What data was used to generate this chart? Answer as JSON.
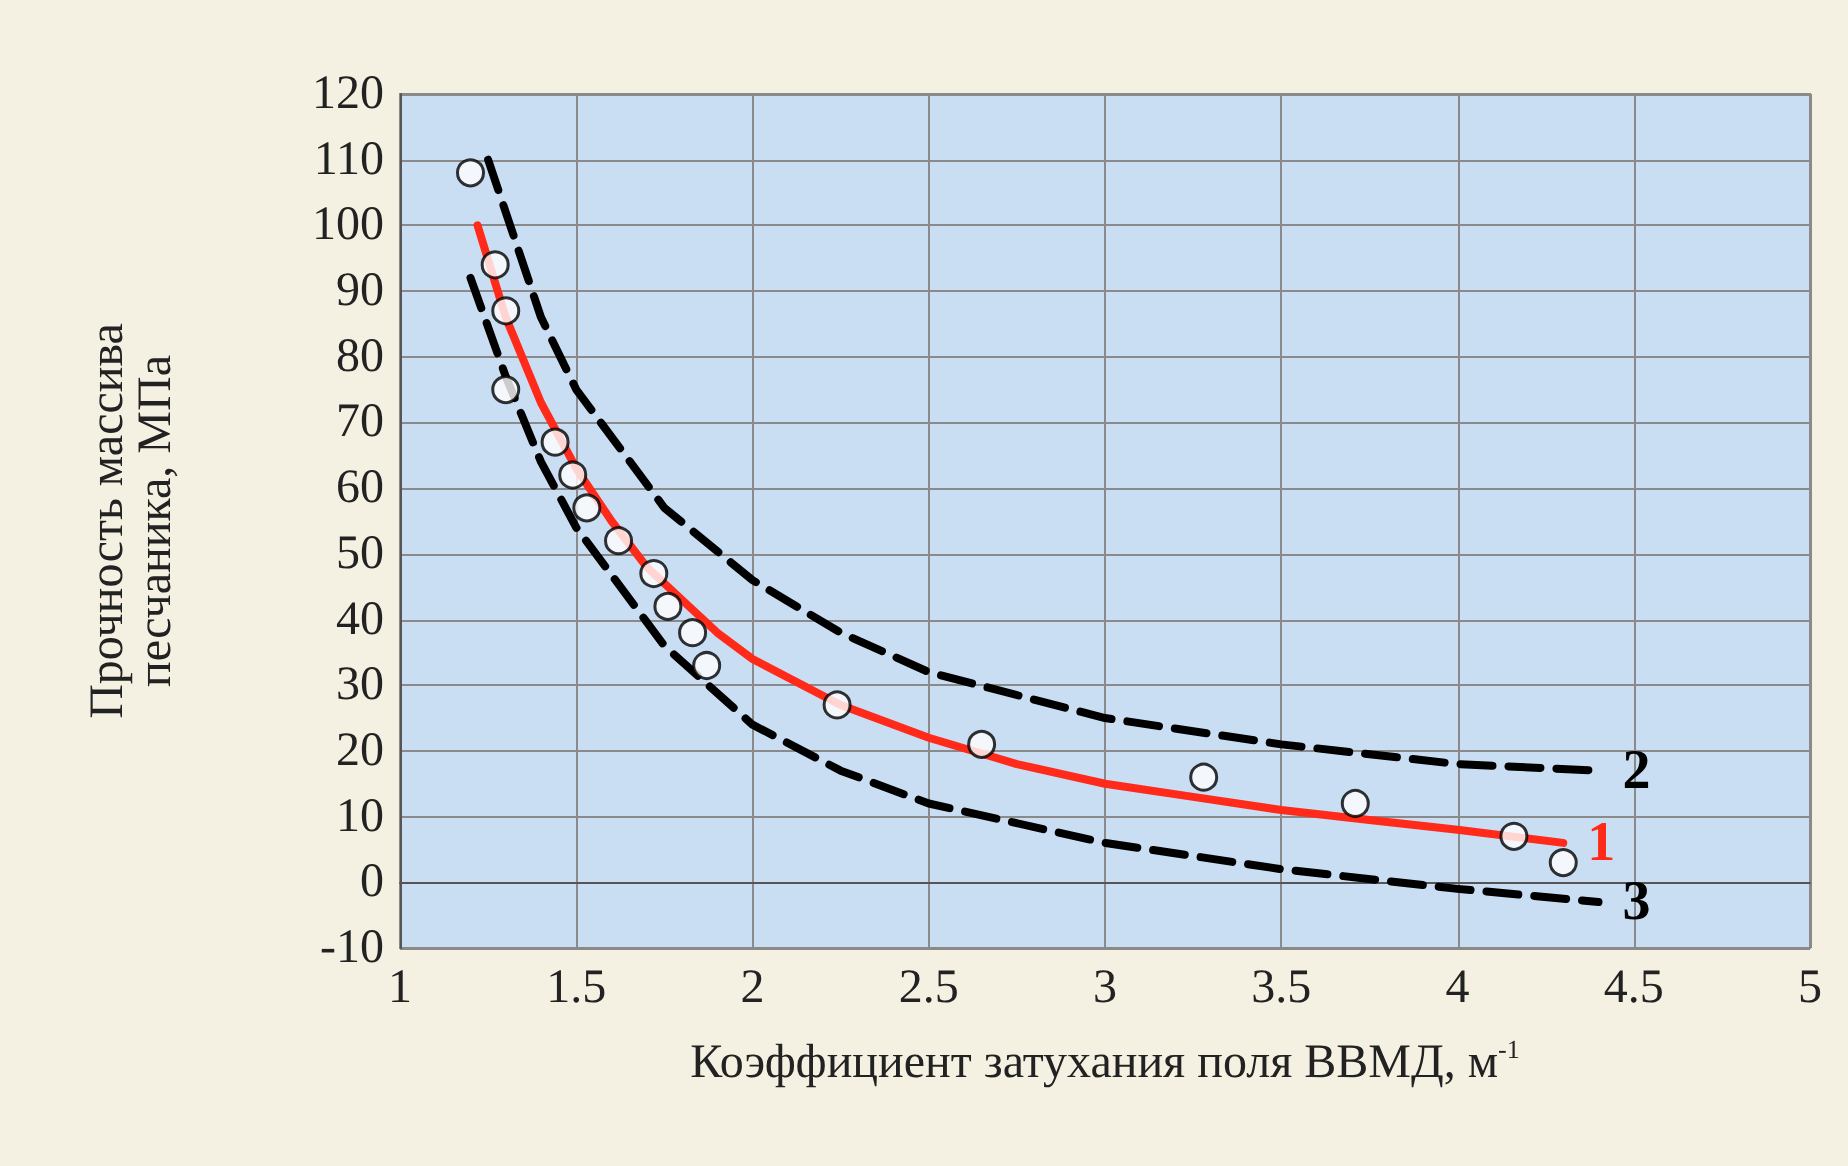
{
  "chart_data": {
    "type": "scatter",
    "xlabel": "Коэффициент затухания поля ВВМД, м$^{-1}$",
    "ylabel": "Прочность массива\nпесчаника, МПа",
    "xlim": [
      1,
      5
    ],
    "xticks": [
      1,
      1.5,
      2,
      2.5,
      3,
      3.5,
      4,
      4.5,
      5
    ],
    "ylim": [
      -10,
      120
    ],
    "yticks": [
      -10,
      0,
      10,
      20,
      30,
      40,
      50,
      60,
      70,
      80,
      90,
      100,
      110,
      120
    ],
    "grid": true,
    "legend": false,
    "series": [
      {
        "type": "line",
        "name": "2",
        "color": "#000000",
        "line_style": "dashed",
        "marker": "none",
        "x": [
          1.25,
          1.4,
          1.5,
          1.75,
          2.0,
          2.25,
          2.5,
          3.0,
          3.5,
          4.0,
          4.4
        ],
        "values": [
          110,
          86,
          75,
          57,
          46,
          38,
          32,
          25,
          21,
          18,
          17
        ]
      },
      {
        "type": "line",
        "name": "3",
        "color": "#000000",
        "line_style": "dashed",
        "marker": "none",
        "x": [
          1.2,
          1.3,
          1.4,
          1.5,
          1.75,
          2.0,
          2.25,
          2.5,
          3.0,
          3.5,
          4.0,
          4.4
        ],
        "values": [
          92,
          77,
          64,
          54,
          36,
          24,
          17,
          12,
          6,
          2,
          -1,
          -3
        ]
      },
      {
        "type": "line",
        "name": "1",
        "color": "#ff2a1a",
        "line_style": "solid",
        "marker": "none",
        "x": [
          1.22,
          1.3,
          1.4,
          1.5,
          1.6,
          1.7,
          1.8,
          1.9,
          2.0,
          2.25,
          2.5,
          2.75,
          3.0,
          3.25,
          3.5,
          3.75,
          4.0,
          4.3
        ],
        "values": [
          100,
          86,
          73,
          63,
          55,
          48,
          43,
          38,
          34,
          27,
          22,
          18,
          15,
          13,
          11,
          9.5,
          8,
          6
        ]
      },
      {
        "color": "#ffffff",
        "marker": "circle",
        "x": [
          1.2,
          1.27,
          1.3,
          1.3,
          1.44,
          1.49,
          1.53,
          1.62,
          1.72,
          1.76,
          1.83,
          1.87,
          2.24,
          2.65,
          3.28,
          3.71,
          4.16,
          4.3
        ],
        "values": [
          108,
          94,
          87,
          75,
          67,
          62,
          57,
          52,
          47,
          42,
          38,
          33,
          27,
          21,
          16,
          12,
          7,
          3
        ]
      }
    ]
  }
}
